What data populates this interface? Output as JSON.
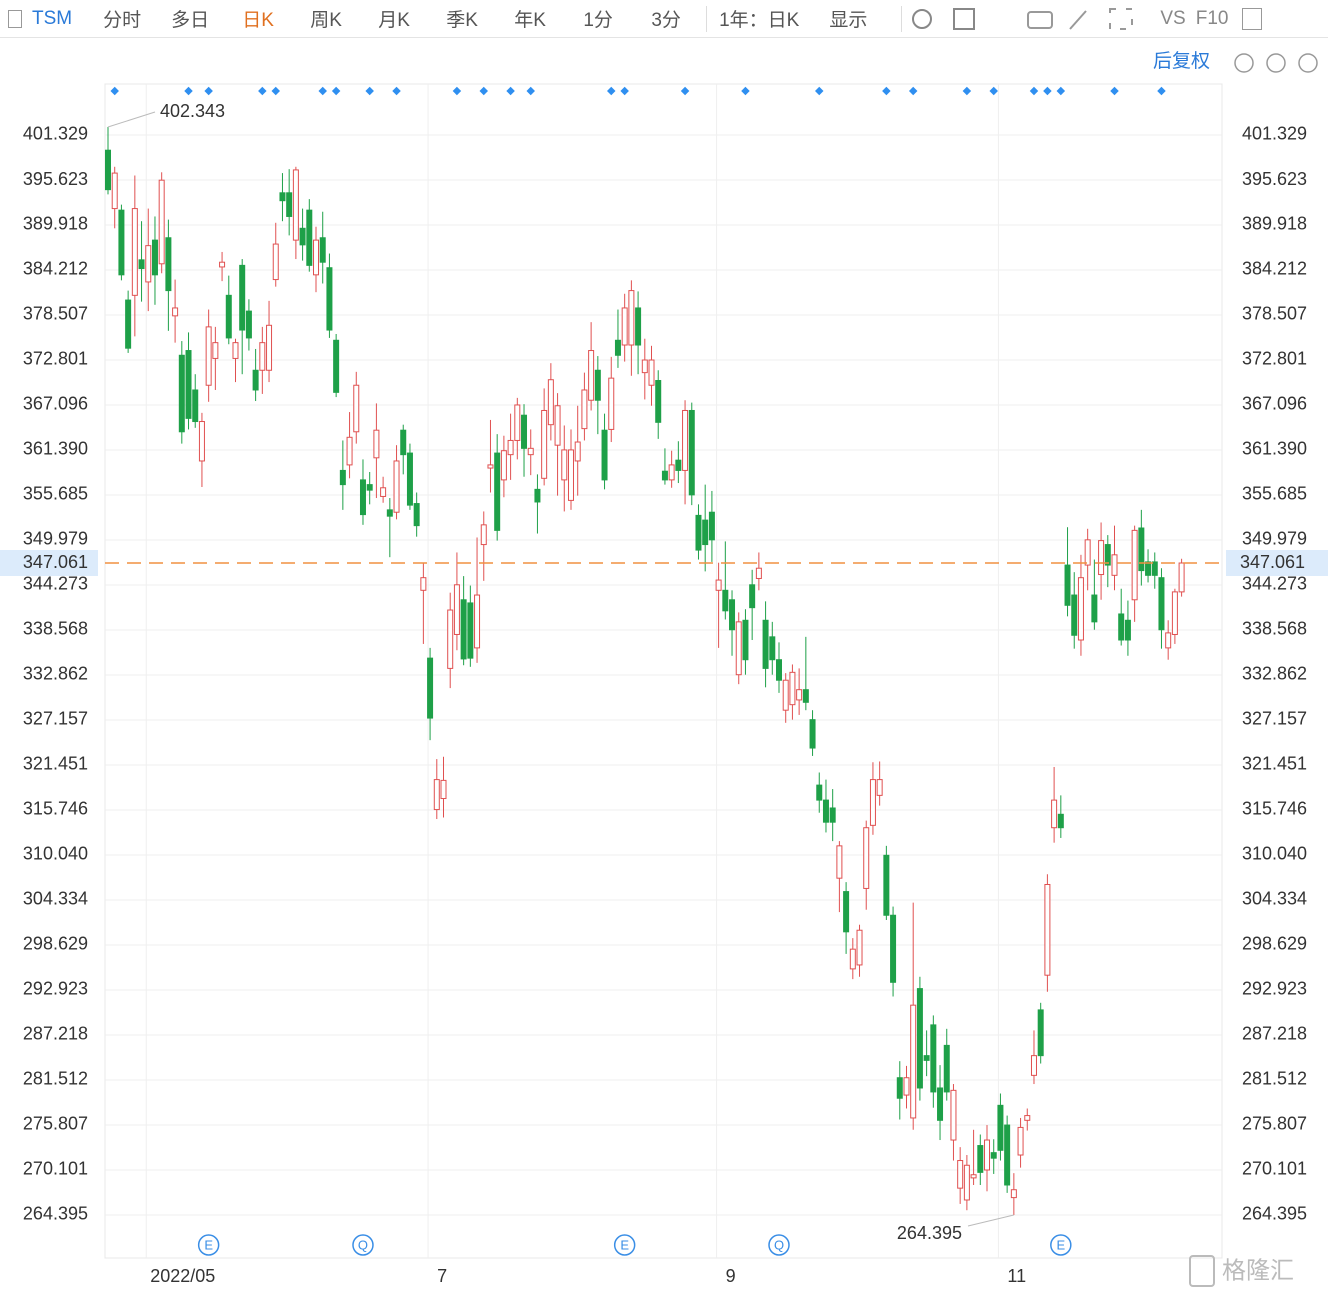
{
  "toolbar": {
    "symbol": "TSM",
    "tabs": [
      "分时",
      "多日",
      "日K",
      "周K",
      "月K",
      "季K",
      "年K",
      "1分",
      "3分"
    ],
    "active_tab": 2,
    "period": "1年：日K",
    "display": "显示",
    "vs": "VS",
    "f10": "F10",
    "adjust": "后复权"
  },
  "watermark": "格隆汇",
  "chart_data": {
    "type": "candlestick",
    "categories": [
      null,
      null,
      null,
      null,
      null,
      null,
      "2022/05",
      null,
      null,
      null,
      null,
      null,
      null,
      null,
      null,
      null,
      null,
      null,
      null,
      null,
      null,
      null,
      null,
      null,
      null,
      null,
      null,
      null,
      null,
      null,
      null,
      null,
      null,
      null,
      null,
      null,
      null,
      null,
      null,
      null,
      null,
      null,
      null,
      null,
      null,
      null,
      null,
      null,
      "7",
      null,
      null,
      null,
      null,
      null,
      null,
      null,
      null,
      null,
      null,
      null,
      null,
      null,
      null,
      null,
      null,
      null,
      null,
      null,
      null,
      null,
      null,
      null,
      null,
      null,
      null,
      null,
      null,
      null,
      null,
      null,
      null,
      null,
      null,
      null,
      null,
      null,
      null,
      null,
      null,
      null,
      null,
      "9",
      null,
      null,
      null,
      null,
      null,
      null,
      null,
      null,
      null,
      null,
      null,
      null,
      null,
      null,
      null,
      null,
      null,
      null,
      null,
      null,
      null,
      null,
      null,
      null,
      null,
      null,
      null,
      null,
      null,
      null,
      null,
      null,
      null,
      null,
      null,
      null,
      null,
      null,
      null,
      null,
      null,
      "11",
      null,
      null,
      null,
      null,
      null,
      null,
      null,
      null,
      null,
      null,
      null,
      null,
      null,
      null,
      null,
      null,
      null,
      null,
      null,
      null,
      null,
      null,
      null,
      null,
      null,
      null,
      null
    ],
    "series": [
      {
        "up_color": "#e05050",
        "down_color": "#1ea048",
        "values": [
          [
            399.4,
            402.343,
            393.8,
            394.4
          ],
          [
            392,
            397.3,
            389.5,
            396.5
          ],
          [
            391.8,
            392.5,
            382.9,
            383.6
          ],
          [
            380.4,
            381.6,
            373.7,
            374.3
          ],
          [
            381,
            396.2,
            375.8,
            392
          ],
          [
            385.5,
            390.4,
            380.2,
            384.4
          ],
          [
            382.7,
            392,
            379,
            387.3
          ],
          [
            388,
            391,
            379.8,
            383.6
          ],
          [
            385,
            396.6,
            383.8,
            395.6
          ],
          [
            388.3,
            390.6,
            376.5,
            381.6
          ],
          [
            378.4,
            383,
            375,
            379.4
          ],
          [
            373.4,
            375.2,
            362.2,
            363.7
          ],
          [
            374,
            376.3,
            364,
            365.4
          ],
          [
            369,
            371,
            364.2,
            365
          ],
          [
            360,
            366.1,
            356.7,
            365
          ],
          [
            369.6,
            379.2,
            367.5,
            377
          ],
          [
            373,
            377,
            369,
            375
          ],
          [
            384.6,
            386.5,
            382.8,
            385.2
          ],
          [
            381,
            383.5,
            374.8,
            375.6
          ],
          [
            373,
            375.5,
            370,
            375
          ],
          [
            384.8,
            385.6,
            371,
            376.6
          ],
          [
            379,
            380.5,
            374,
            375.6
          ],
          [
            371.5,
            374.2,
            367.6,
            369
          ],
          [
            371.5,
            377,
            368.5,
            375
          ],
          [
            371.5,
            380.3,
            370,
            377.2
          ],
          [
            383,
            390.2,
            382.1,
            387.5
          ],
          [
            394,
            396.5,
            390.4,
            393
          ],
          [
            394,
            397,
            388.6,
            391
          ],
          [
            388,
            397.3,
            385.6,
            396.9
          ],
          [
            389.5,
            392,
            385.4,
            387.4
          ],
          [
            391.8,
            393.2,
            384,
            384.8
          ],
          [
            383.6,
            389.7,
            381.4,
            388
          ],
          [
            388.3,
            391.6,
            382.5,
            385.2
          ],
          [
            384.5,
            386.3,
            375.6,
            376.6
          ],
          [
            375.3,
            376.1,
            368.1,
            368.7
          ],
          [
            358.8,
            362.6,
            353.8,
            357
          ],
          [
            359.5,
            366.2,
            357.8,
            363
          ],
          [
            363.7,
            371.3,
            362.2,
            369.6
          ],
          [
            357.6,
            360.2,
            351.9,
            353.2
          ],
          [
            357,
            358.6,
            354.5,
            356.3
          ],
          [
            360.4,
            367.3,
            355.3,
            363.9
          ],
          [
            355.5,
            358,
            354.7,
            356.6
          ],
          [
            353.8,
            355.3,
            347.8,
            353
          ],
          [
            353.5,
            362,
            352.6,
            360
          ],
          [
            363.9,
            364.6,
            358.3,
            360.8
          ],
          [
            361,
            362.2,
            353.8,
            354.4
          ],
          [
            354.6,
            356,
            350.4,
            351.8
          ],
          [
            343.6,
            347,
            336.8,
            345.2
          ],
          [
            335,
            336.3,
            324.6,
            327.4
          ],
          [
            315.8,
            322.2,
            314.6,
            319.6
          ],
          [
            317.2,
            322.5,
            314.8,
            319.5
          ],
          [
            333.7,
            343.3,
            331.2,
            341.1
          ],
          [
            338,
            348.4,
            336,
            344.3
          ],
          [
            342.4,
            345.4,
            334.1,
            334.9
          ],
          [
            342,
            344.2,
            333.9,
            335
          ],
          [
            336.3,
            350.3,
            334.4,
            343
          ],
          [
            349.4,
            353.6,
            344.8,
            351.9
          ],
          [
            359.1,
            365.2,
            356,
            359.5
          ],
          [
            361,
            363.4,
            349.9,
            351.2
          ],
          [
            357.6,
            363.2,
            355.4,
            361.3
          ],
          [
            360.8,
            366,
            357.6,
            362.6
          ],
          [
            362.6,
            368,
            360.2,
            367.1
          ],
          [
            365.8,
            367.2,
            358,
            361.6
          ],
          [
            360.8,
            364,
            358.2,
            361.6
          ],
          [
            356.4,
            358.3,
            350.8,
            354.8
          ],
          [
            357.8,
            369.2,
            356.9,
            366.4
          ],
          [
            364.6,
            372.4,
            362.6,
            370.3
          ],
          [
            362,
            368.6,
            355.6,
            367
          ],
          [
            357.6,
            364.5,
            353.6,
            361.4
          ],
          [
            355,
            364,
            353.8,
            361.4
          ],
          [
            360,
            367,
            355.6,
            362.4
          ],
          [
            364.1,
            371.2,
            362.6,
            369
          ],
          [
            367.7,
            377.6,
            366.4,
            374
          ],
          [
            371.5,
            373.3,
            363.4,
            367.7
          ],
          [
            363.9,
            366,
            356.4,
            357.6
          ],
          [
            364,
            373.2,
            362.4,
            370.5
          ],
          [
            375.3,
            379.2,
            371.8,
            373.4
          ],
          [
            374.7,
            381.2,
            372.6,
            379.4
          ],
          [
            374.7,
            382.9,
            370.8,
            381.6
          ],
          [
            379.4,
            381.5,
            371,
            374.7
          ],
          [
            371.2,
            375.5,
            367.8,
            372.8
          ],
          [
            369.6,
            374.6,
            367,
            372.8
          ],
          [
            370.2,
            371.5,
            362.8,
            364.9
          ],
          [
            358.7,
            361.6,
            357,
            357.6
          ],
          [
            357.6,
            361.3,
            356.6,
            359.5
          ],
          [
            360.1,
            362.5,
            357.2,
            358.8
          ],
          [
            358.8,
            367.7,
            354.5,
            366.4
          ],
          [
            366.4,
            367.4,
            354.4,
            355.7
          ],
          [
            353.1,
            354.5,
            347.5,
            348.7
          ],
          [
            352.5,
            357,
            346,
            349.4
          ],
          [
            353.5,
            356.2,
            347.2,
            350
          ],
          [
            343.6,
            347.1,
            336.3,
            344.9
          ],
          [
            343.6,
            349.8,
            339.9,
            341
          ],
          [
            342.4,
            343.6,
            335.3,
            338.6
          ],
          [
            332.9,
            340.8,
            331.7,
            339.6
          ],
          [
            339.8,
            341.2,
            332.9,
            334.8
          ],
          [
            344.3,
            346.2,
            337.3,
            341.4
          ],
          [
            345.1,
            348.4,
            343.6,
            346.4
          ],
          [
            339.8,
            342.2,
            331.3,
            333.7
          ],
          [
            337.7,
            339.6,
            332.9,
            334.8
          ],
          [
            334.8,
            337,
            330.6,
            332.2
          ],
          [
            328.4,
            333.1,
            326.8,
            332.2
          ],
          [
            329.1,
            334.2,
            327.2,
            333.2
          ],
          [
            329.7,
            333.7,
            327.8,
            331
          ],
          [
            331,
            337.7,
            328.4,
            329.4
          ],
          [
            327.2,
            328.4,
            322.6,
            323.6
          ],
          [
            318.9,
            320.5,
            315.4,
            317
          ],
          [
            317,
            319.6,
            312.9,
            314.2
          ],
          [
            316,
            318.4,
            311.8,
            314.2
          ],
          [
            307.1,
            311.8,
            302.8,
            311.2
          ],
          [
            305.4,
            306.6,
            297.5,
            300.3
          ],
          [
            295.6,
            299.5,
            294.3,
            298.1
          ],
          [
            296.1,
            301.2,
            294.6,
            300.5
          ],
          [
            305.8,
            314.4,
            303.1,
            313.5
          ],
          [
            313.8,
            321.8,
            312.6,
            319.6
          ],
          [
            317.6,
            321.9,
            316.3,
            319.6
          ],
          [
            310,
            311.2,
            301.8,
            302.4
          ],
          [
            302.4,
            303.5,
            292.1,
            293.9
          ],
          [
            281.8,
            283.9,
            276.5,
            279.2
          ],
          [
            279.6,
            283.3,
            277.9,
            281.8
          ],
          [
            276.7,
            304,
            275.2,
            291
          ],
          [
            293.1,
            294.6,
            278.9,
            280.5
          ],
          [
            284.6,
            287.8,
            282,
            284
          ],
          [
            288.5,
            289.7,
            278,
            280
          ],
          [
            280.5,
            283.4,
            273.9,
            276.4
          ],
          [
            285.9,
            288,
            278.9,
            280
          ],
          [
            273.9,
            281,
            271.3,
            280.2
          ],
          [
            267.8,
            273,
            265.8,
            271.3
          ],
          [
            266.3,
            272,
            265,
            270.7
          ],
          [
            269.1,
            275.2,
            268.2,
            269.5
          ],
          [
            273.2,
            274.6,
            268.2,
            269.8
          ],
          [
            270.1,
            275.8,
            267.4,
            273.9
          ],
          [
            272.3,
            274,
            269.6,
            271.6
          ],
          [
            278.3,
            279.8,
            271.3,
            272.6
          ],
          [
            275.8,
            277,
            267.2,
            268.2
          ],
          [
            266.6,
            269.7,
            264.395,
            267.6
          ],
          [
            272,
            276.7,
            270.4,
            275.5
          ],
          [
            276.4,
            277.9,
            275.1,
            277
          ],
          [
            282.1,
            287.8,
            281,
            284.6
          ],
          [
            290.4,
            291.3,
            283.6,
            284.6
          ],
          [
            294.8,
            307.6,
            292.7,
            306.3
          ],
          [
            313.5,
            321.2,
            311.6,
            317
          ],
          [
            315.2,
            317.6,
            312.2,
            313.5
          ],
          [
            346.8,
            351.6,
            340.3,
            341.7
          ],
          [
            343,
            345.9,
            336.2,
            337.9
          ],
          [
            337.3,
            348.1,
            335.3,
            345.2
          ],
          [
            346.8,
            351.4,
            343.6,
            350
          ],
          [
            343,
            347.5,
            338.6,
            339.6
          ],
          [
            345.6,
            352.2,
            342.4,
            349.9
          ],
          [
            349.4,
            350.6,
            344,
            346.8
          ],
          [
            345.5,
            351.8,
            343.6,
            348.1
          ],
          [
            340.6,
            343.8,
            336.6,
            337.3
          ],
          [
            339.8,
            342.3,
            335.3,
            337.3
          ],
          [
            342.4,
            351.8,
            339.6,
            351.2
          ],
          [
            351.5,
            353.8,
            344.2,
            346.1
          ],
          [
            347.2,
            348.8,
            344.6,
            345.5
          ],
          [
            347.2,
            348.4,
            343.8,
            345.5
          ],
          [
            345.2,
            346.4,
            336.2,
            338.6
          ],
          [
            336.3,
            339.8,
            334.8,
            338.2
          ],
          [
            338,
            343.8,
            336.8,
            343.4
          ],
          [
            343.4,
            347.6,
            342.8,
            347.061
          ]
        ]
      }
    ],
    "ylim": [
      258.943,
      407.795
    ],
    "yticks": [
      401.329,
      395.623,
      389.918,
      384.212,
      378.507,
      372.801,
      367.096,
      {
        "value": 361.39,
        "label": "361.390"
      },
      355.685,
      349.979,
      344.273,
      338.568,
      332.862,
      327.157,
      321.451,
      315.746,
      {
        "value": 310.04,
        "label": "310.040"
      },
      304.334,
      298.629,
      292.923,
      287.218,
      281.512,
      275.807,
      270.101,
      264.395
    ],
    "grid": true,
    "last_price": 347.061,
    "last_price_color": "#e02020",
    "last_line_color": "#f09040",
    "max_label": {
      "value": 402.343,
      "at": 0
    },
    "min_label": {
      "value": 264.395,
      "at": 135
    },
    "events": [
      {
        "label": "E",
        "at": 15
      },
      {
        "label": "Q",
        "at": 38
      },
      {
        "label": "E",
        "at": 77
      },
      {
        "label": "Q",
        "at": 100
      },
      {
        "label": "E",
        "at": 142
      }
    ],
    "top_markers": [
      1,
      12,
      15,
      23,
      25,
      32,
      34,
      39,
      43,
      52,
      56,
      60,
      63,
      75,
      77,
      86,
      95,
      106,
      116,
      120,
      128,
      132,
      138,
      140,
      142,
      150,
      157
    ],
    "marker_color": "#2f8ff0"
  }
}
